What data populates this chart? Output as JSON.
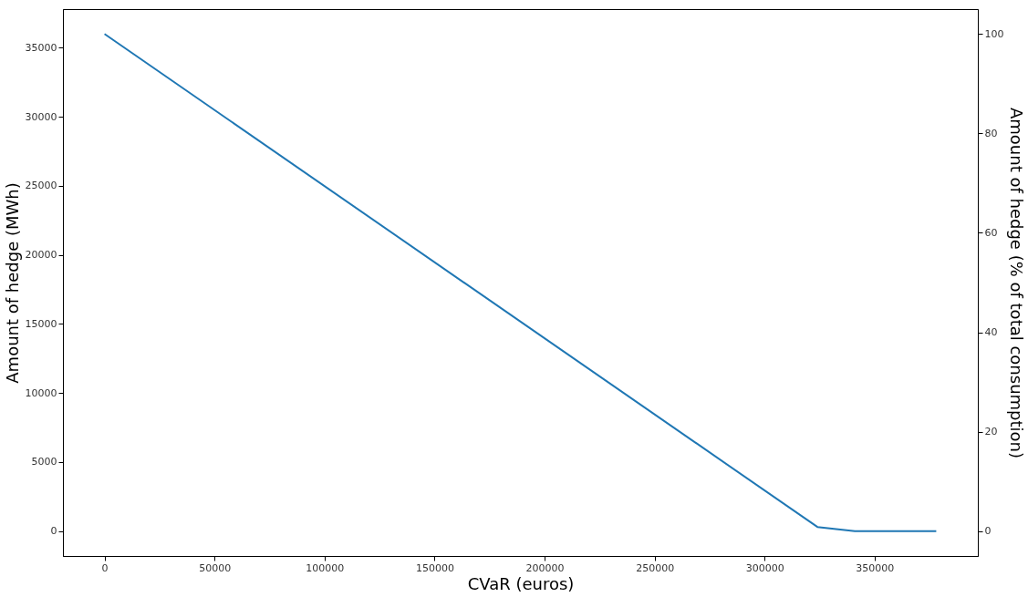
{
  "chart_data": {
    "type": "line",
    "xlabel": "CVaR (euros)",
    "ylabel": "Amount of hedge (MWh)",
    "y2label": "Amount of hedge (% of total consumption)",
    "x": [
      0,
      324000,
      341000,
      378000
    ],
    "series": [
      {
        "color": "#1f77b4",
        "values": [
          36000,
          300,
          0,
          0
        ]
      }
    ],
    "xlim": [
      -18900,
      396900
    ],
    "xticks": [
      0,
      50000,
      100000,
      150000,
      200000,
      250000,
      300000,
      350000
    ],
    "ylim": [
      -1800,
      37800
    ],
    "yticks": [
      0,
      5000,
      10000,
      15000,
      20000,
      25000,
      30000,
      35000
    ],
    "y2lim": [
      -5,
      105
    ],
    "y2ticks": [
      0,
      20,
      40,
      60,
      80,
      100
    ],
    "grid": false,
    "marker": "none",
    "line_style": "solid"
  }
}
